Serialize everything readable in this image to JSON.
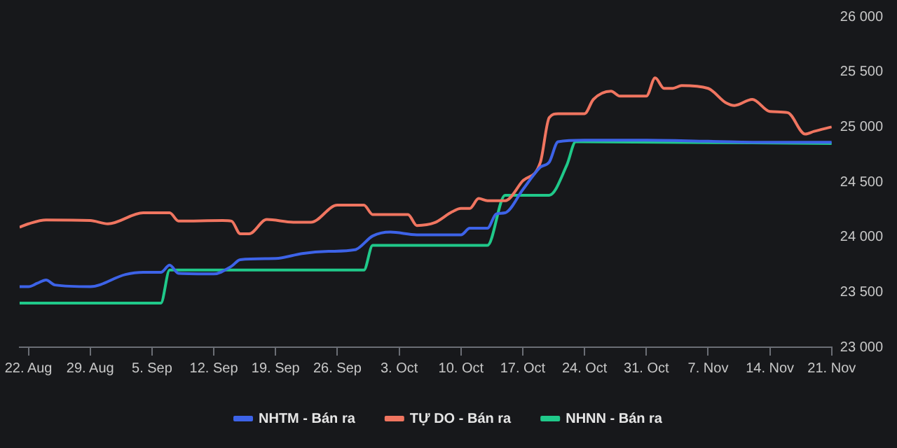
{
  "chart_data": {
    "type": "line",
    "legend": "bottom",
    "marker": "none",
    "line_style": "solid",
    "grid": false,
    "xlim": [
      "--08-21",
      "--11-21"
    ],
    "xticks": [
      {
        "value": "--08-22",
        "label": "22. Aug"
      },
      {
        "value": "--08-29",
        "label": "29. Aug"
      },
      {
        "value": "--09-05",
        "label": "5. Sep"
      },
      {
        "value": "--09-12",
        "label": "12. Sep"
      },
      {
        "value": "--09-19",
        "label": "19. Sep"
      },
      {
        "value": "--09-26",
        "label": "26. Sep"
      },
      {
        "value": "--10-03",
        "label": "3. Oct"
      },
      {
        "value": "--10-10",
        "label": "10. Oct"
      },
      {
        "value": "--10-17",
        "label": "17. Oct"
      },
      {
        "value": "--10-24",
        "label": "24. Oct"
      },
      {
        "value": "--10-31",
        "label": "31. Oct"
      },
      {
        "value": "--11-07",
        "label": "7. Nov"
      },
      {
        "value": "--11-14",
        "label": "14. Nov"
      },
      {
        "value": "--11-21",
        "label": "21. Nov"
      }
    ],
    "ylim": [
      23000,
      26000
    ],
    "yticks": [
      {
        "value": 23000,
        "label": "23 000"
      },
      {
        "value": 23500,
        "label": "23 500"
      },
      {
        "value": 24000,
        "label": "24 000"
      },
      {
        "value": 24500,
        "label": "24 500"
      },
      {
        "value": 25000,
        "label": "25 000"
      },
      {
        "value": 25500,
        "label": "25 500"
      },
      {
        "value": 26000,
        "label": "26 000"
      }
    ],
    "series": [
      {
        "name": "NHTM - Bán ra",
        "color": "#3d63e8",
        "x": [
          "--08-21",
          "--08-22",
          "--08-23",
          "--08-24",
          "--08-25",
          "--08-29",
          "--09-02",
          "--09-04",
          "--09-06",
          "--09-07",
          "--09-08",
          "--09-12",
          "--09-14",
          "--09-15",
          "--09-19",
          "--09-22",
          "--09-25",
          "--09-28",
          "--09-30",
          "--10-02",
          "--10-05",
          "--10-10",
          "--10-11",
          "--10-13",
          "--10-14",
          "--10-15",
          "--10-17",
          "--10-19",
          "--10-20",
          "--10-21",
          "--10-24",
          "--10-31",
          "--11-07",
          "--11-14",
          "--11-21"
        ],
        "values": [
          23550,
          23550,
          23580,
          23610,
          23565,
          23550,
          23660,
          23680,
          23680,
          23745,
          23670,
          23665,
          23735,
          23795,
          23805,
          23850,
          23870,
          23885,
          24010,
          24045,
          24020,
          24020,
          24080,
          24080,
          24210,
          24220,
          24430,
          24635,
          24680,
          24865,
          24880,
          24880,
          24870,
          24860,
          24860
        ]
      },
      {
        "name": "TỰ DO - Bán ra",
        "color": "#f07560",
        "x": [
          "--08-21",
          "--08-22",
          "--08-24",
          "--08-29",
          "--08-31",
          "--09-04",
          "--09-07",
          "--09-08",
          "--09-13",
          "--09-14",
          "--09-15",
          "--09-16",
          "--09-18",
          "--09-21",
          "--09-23",
          "--09-26",
          "--09-29",
          "--09-30",
          "--10-04",
          "--10-05",
          "--10-07",
          "--10-09",
          "--10-10",
          "--10-11",
          "--10-12",
          "--10-13",
          "--10-15",
          "--10-17",
          "--10-19",
          "--10-20",
          "--10-21",
          "--10-24",
          "--10-25",
          "--10-27",
          "--10-28",
          "--10-31",
          "--11-01",
          "--11-02",
          "--11-03",
          "--11-04",
          "--11-07",
          "--11-09",
          "--11-10",
          "--11-12",
          "--11-14",
          "--11-16",
          "--11-18",
          "--11-19",
          "--11-21"
        ],
        "values": [
          24090,
          24120,
          24155,
          24150,
          24120,
          24220,
          24220,
          24145,
          24150,
          24145,
          24030,
          24030,
          24160,
          24135,
          24135,
          24290,
          24290,
          24205,
          24205,
          24105,
          24130,
          24230,
          24260,
          24260,
          24350,
          24330,
          24330,
          24510,
          24680,
          25085,
          25120,
          25120,
          25250,
          25325,
          25280,
          25280,
          25445,
          25350,
          25350,
          25375,
          25350,
          25220,
          25195,
          25250,
          25140,
          25130,
          24935,
          24960,
          25000
        ]
      },
      {
        "name": "NHNN - Bán ra",
        "color": "#20c98a",
        "x": [
          "--08-21",
          "--09-06",
          "--09-07",
          "--09-29",
          "--09-30",
          "--10-13",
          "--10-15",
          "--10-20",
          "--10-22",
          "--10-23",
          "--11-21"
        ],
        "values": [
          23400,
          23400,
          23700,
          23700,
          23925,
          23925,
          24380,
          24380,
          24655,
          24865,
          24850
        ]
      }
    ]
  }
}
